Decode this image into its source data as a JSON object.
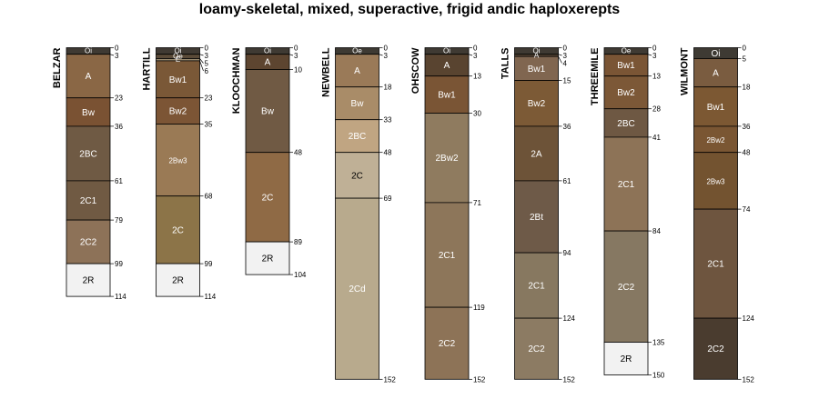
{
  "chart_data": {
    "type": "soil-profile-sketch",
    "title": "loamy-skeletal, mixed, superactive, frigid andic haploxerepts",
    "depth_unit": "cm",
    "profiles": [
      {
        "name": "BELZAR",
        "horizons": [
          {
            "name": "Oi",
            "top": 0,
            "bottom": 3,
            "color": "#3f3a33"
          },
          {
            "name": "A",
            "top": 3,
            "bottom": 23,
            "color": "#8a6745"
          },
          {
            "name": "Bw",
            "top": 23,
            "bottom": 36,
            "color": "#7a5233"
          },
          {
            "name": "2BC",
            "top": 36,
            "bottom": 61,
            "color": "#6f5a44"
          },
          {
            "name": "2C1",
            "top": 61,
            "bottom": 79,
            "color": "#705a43"
          },
          {
            "name": "2C2",
            "top": 79,
            "bottom": 99,
            "color": "#8d7258"
          },
          {
            "name": "2R",
            "top": 99,
            "bottom": 114,
            "color": "#f2f2f2"
          }
        ]
      },
      {
        "name": "HARTILL",
        "horizons": [
          {
            "name": "Oi",
            "top": 0,
            "bottom": 3,
            "color": "#403a33"
          },
          {
            "name": "Oe",
            "top": 3,
            "bottom": 5,
            "color": "#5a4a38"
          },
          {
            "name": "E",
            "top": 5,
            "bottom": 6,
            "color": "#9a8a70"
          },
          {
            "name": "Bw1",
            "top": 6,
            "bottom": 23,
            "color": "#7a5837"
          },
          {
            "name": "Bw2",
            "top": 23,
            "bottom": 35,
            "color": "#7c5535"
          },
          {
            "name": "2Bw3",
            "top": 35,
            "bottom": 68,
            "color": "#9a7a55"
          },
          {
            "name": "2C",
            "top": 68,
            "bottom": 99,
            "color": "#8c7448"
          },
          {
            "name": "2R",
            "top": 99,
            "bottom": 114,
            "color": "#f2f2f2"
          }
        ]
      },
      {
        "name": "KLOOCHMAN",
        "horizons": [
          {
            "name": "Oi",
            "top": 0,
            "bottom": 3,
            "color": "#3f3a33"
          },
          {
            "name": "A",
            "top": 3,
            "bottom": 10,
            "color": "#5d4530"
          },
          {
            "name": "Bw",
            "top": 10,
            "bottom": 48,
            "color": "#705a44"
          },
          {
            "name": "2C",
            "top": 48,
            "bottom": 89,
            "color": "#8f6a45"
          },
          {
            "name": "2R",
            "top": 89,
            "bottom": 104,
            "color": "#f2f2f2"
          }
        ]
      },
      {
        "name": "NEWBELL",
        "horizons": [
          {
            "name": "Oe",
            "top": 0,
            "bottom": 3,
            "color": "#3e3a33"
          },
          {
            "name": "A",
            "top": 3,
            "bottom": 18,
            "color": "#9a7a58"
          },
          {
            "name": "Bw",
            "top": 18,
            "bottom": 33,
            "color": "#a98c68"
          },
          {
            "name": "2BC",
            "top": 33,
            "bottom": 48,
            "color": "#c0a582"
          },
          {
            "name": "2C",
            "top": 48,
            "bottom": 69,
            "color": "#bfb096"
          },
          {
            "name": "2Cd",
            "top": 69,
            "bottom": 152,
            "color": "#b8aa8d"
          }
        ]
      },
      {
        "name": "OHSCOW",
        "horizons": [
          {
            "name": "Oi",
            "top": 0,
            "bottom": 3,
            "color": "#3f3a33"
          },
          {
            "name": "A",
            "top": 3,
            "bottom": 13,
            "color": "#594430"
          },
          {
            "name": "Bw1",
            "top": 13,
            "bottom": 30,
            "color": "#7a5535"
          },
          {
            "name": "2Bw2",
            "top": 30,
            "bottom": 71,
            "color": "#8f7b5f"
          },
          {
            "name": "2C1",
            "top": 71,
            "bottom": 119,
            "color": "#8d765a"
          },
          {
            "name": "2C2",
            "top": 119,
            "bottom": 152,
            "color": "#8d7357"
          }
        ]
      },
      {
        "name": "TALLS",
        "horizons": [
          {
            "name": "Oi",
            "top": 0,
            "bottom": 3,
            "color": "#3f3a33"
          },
          {
            "name": "A",
            "top": 3,
            "bottom": 4,
            "color": "#5a4a38"
          },
          {
            "name": "Bw1",
            "top": 4,
            "bottom": 15,
            "color": "#806650"
          },
          {
            "name": "Bw2",
            "top": 15,
            "bottom": 36,
            "color": "#7c5a36"
          },
          {
            "name": "2A",
            "top": 36,
            "bottom": 61,
            "color": "#6d5338"
          },
          {
            "name": "2Bt",
            "top": 61,
            "bottom": 94,
            "color": "#6e5a48"
          },
          {
            "name": "2C1",
            "top": 94,
            "bottom": 124,
            "color": "#877860"
          },
          {
            "name": "2C2",
            "top": 124,
            "bottom": 152,
            "color": "#8c7b63"
          }
        ]
      },
      {
        "name": "THREEMILE",
        "horizons": [
          {
            "name": "Oe",
            "top": 0,
            "bottom": 3,
            "color": "#3f3a33"
          },
          {
            "name": "Bw1",
            "top": 3,
            "bottom": 13,
            "color": "#7a5535"
          },
          {
            "name": "Bw2",
            "top": 13,
            "bottom": 28,
            "color": "#7c5837"
          },
          {
            "name": "2BC",
            "top": 28,
            "bottom": 41,
            "color": "#6e5843"
          },
          {
            "name": "2C1",
            "top": 41,
            "bottom": 84,
            "color": "#8d7357"
          },
          {
            "name": "2C2",
            "top": 84,
            "bottom": 135,
            "color": "#867862"
          },
          {
            "name": "2R",
            "top": 135,
            "bottom": 150,
            "color": "#f2f2f2"
          }
        ]
      },
      {
        "name": "WILMONT",
        "horizons": [
          {
            "name": "Oi",
            "top": 0,
            "bottom": 5,
            "color": "#3e3a33"
          },
          {
            "name": "A",
            "top": 5,
            "bottom": 18,
            "color": "#7a5c40"
          },
          {
            "name": "Bw1",
            "top": 18,
            "bottom": 36,
            "color": "#7c5833"
          },
          {
            "name": "2Bw2",
            "top": 36,
            "bottom": 48,
            "color": "#7a5633"
          },
          {
            "name": "2Bw3",
            "top": 48,
            "bottom": 74,
            "color": "#735330"
          },
          {
            "name": "2C1",
            "top": 74,
            "bottom": 124,
            "color": "#6e553f"
          },
          {
            "name": "2C2",
            "top": 124,
            "bottom": 152,
            "color": "#4a3c2f"
          }
        ]
      }
    ]
  }
}
